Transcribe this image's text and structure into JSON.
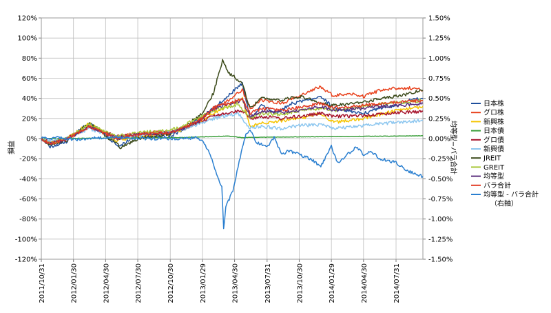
{
  "chart_data": {
    "type": "line",
    "ylabel_left": "損益",
    "ylabel_right": "均等型−バラ合計",
    "left_axis": {
      "min": -1.2,
      "max": 1.2,
      "step": 0.2,
      "format": "percent0",
      "ticks": [
        "120%",
        "100%",
        "80%",
        "60%",
        "40%",
        "20%",
        "0%",
        "-20%",
        "-40%",
        "-60%",
        "-80%",
        "-100%",
        "-120%"
      ]
    },
    "right_axis": {
      "min": -0.015,
      "max": 0.015,
      "step": 0.0025,
      "format": "percent2",
      "ticks": [
        "1.50%",
        "1.25%",
        "1.00%",
        "0.75%",
        "0.50%",
        "0.25%",
        "0.00%",
        "-0.25%",
        "-0.50%",
        "-0.75%",
        "-1.00%",
        "-1.25%",
        "-1.50%"
      ]
    },
    "x_range": [
      "2011-10-31",
      "2014-10-15"
    ],
    "x_ticks": [
      "2011/10/31",
      "2012/01/30",
      "2012/04/30",
      "2012/07/30",
      "2012/10/30",
      "2013/01/29",
      "2013/04/30",
      "2013/07/31",
      "2013/10/30",
      "2014/01/29",
      "2014/04/30",
      "2014/07/31"
    ],
    "series": [
      {
        "name": "日本株",
        "color": "#1f4f9c",
        "axis": "left",
        "width": 1.5,
        "points": [
          [
            "2011-10-31",
            0
          ],
          [
            "2011-11-25",
            -0.08
          ],
          [
            "2012-01-10",
            -0.03
          ],
          [
            "2012-02-20",
            0.1
          ],
          [
            "2012-03-15",
            0.15
          ],
          [
            "2012-04-20",
            0.07
          ],
          [
            "2012-06-05",
            -0.08
          ],
          [
            "2012-07-20",
            0.02
          ],
          [
            "2012-09-10",
            0.02
          ],
          [
            "2012-10-30",
            0.02
          ],
          [
            "2012-12-10",
            0.1
          ],
          [
            "2013-01-29",
            0.22
          ],
          [
            "2013-03-01",
            0.3
          ],
          [
            "2013-04-10",
            0.42
          ],
          [
            "2013-05-22",
            0.55
          ],
          [
            "2013-06-13",
            0.2
          ],
          [
            "2013-07-15",
            0.33
          ],
          [
            "2013-08-30",
            0.25
          ],
          [
            "2013-10-01",
            0.34
          ],
          [
            "2013-11-15",
            0.38
          ],
          [
            "2013-12-30",
            0.42
          ],
          [
            "2014-02-05",
            0.3
          ],
          [
            "2014-03-15",
            0.28
          ],
          [
            "2014-04-30",
            0.25
          ],
          [
            "2014-06-15",
            0.3
          ],
          [
            "2014-07-31",
            0.33
          ],
          [
            "2014-09-10",
            0.38
          ],
          [
            "2014-10-15",
            0.4
          ]
        ]
      },
      {
        "name": "グロ株",
        "color": "#e8401b",
        "axis": "left",
        "width": 1.5,
        "points": [
          [
            "2011-10-31",
            0
          ],
          [
            "2011-11-25",
            -0.05
          ],
          [
            "2012-01-10",
            0
          ],
          [
            "2012-03-15",
            0.12
          ],
          [
            "2012-05-30",
            0.02
          ],
          [
            "2012-07-30",
            0.05
          ],
          [
            "2012-09-20",
            0.07
          ],
          [
            "2012-10-30",
            0.06
          ],
          [
            "2012-12-10",
            0.1
          ],
          [
            "2013-01-29",
            0.2
          ],
          [
            "2013-03-01",
            0.28
          ],
          [
            "2013-04-10",
            0.38
          ],
          [
            "2013-05-22",
            0.48
          ],
          [
            "2013-06-13",
            0.3
          ],
          [
            "2013-07-15",
            0.38
          ],
          [
            "2013-09-10",
            0.35
          ],
          [
            "2013-10-30",
            0.42
          ],
          [
            "2013-12-30",
            0.52
          ],
          [
            "2014-02-05",
            0.42
          ],
          [
            "2014-03-15",
            0.45
          ],
          [
            "2014-04-30",
            0.42
          ],
          [
            "2014-06-15",
            0.48
          ],
          [
            "2014-07-31",
            0.5
          ],
          [
            "2014-09-10",
            0.5
          ],
          [
            "2014-10-15",
            0.48
          ]
        ]
      },
      {
        "name": "新興株",
        "color": "#f5c400",
        "axis": "left",
        "width": 1.5,
        "points": [
          [
            "2011-10-31",
            0
          ],
          [
            "2011-11-25",
            -0.04
          ],
          [
            "2012-01-10",
            0
          ],
          [
            "2012-03-15",
            0.15
          ],
          [
            "2012-05-30",
            -0.02
          ],
          [
            "2012-07-30",
            0.02
          ],
          [
            "2012-10-30",
            0.05
          ],
          [
            "2012-12-10",
            0.1
          ],
          [
            "2013-01-29",
            0.18
          ],
          [
            "2013-03-01",
            0.25
          ],
          [
            "2013-05-22",
            0.4
          ],
          [
            "2013-06-13",
            0.12
          ],
          [
            "2013-07-15",
            0.15
          ],
          [
            "2013-09-10",
            0.18
          ],
          [
            "2013-10-30",
            0.2
          ],
          [
            "2013-12-30",
            0.25
          ],
          [
            "2014-02-05",
            0.16
          ],
          [
            "2014-04-30",
            0.2
          ],
          [
            "2014-06-15",
            0.24
          ],
          [
            "2014-07-31",
            0.28
          ],
          [
            "2014-09-10",
            0.3
          ],
          [
            "2014-10-15",
            0.32
          ]
        ]
      },
      {
        "name": "日本債",
        "color": "#3a9e3a",
        "axis": "left",
        "width": 1.5,
        "points": [
          [
            "2011-10-31",
            0
          ],
          [
            "2012-06-01",
            0.005
          ],
          [
            "2012-12-01",
            0.01
          ],
          [
            "2013-04-10",
            0.025
          ],
          [
            "2013-05-22",
            0.01
          ],
          [
            "2013-09-01",
            0.015
          ],
          [
            "2014-01-29",
            0.02
          ],
          [
            "2014-07-31",
            0.025
          ],
          [
            "2014-10-15",
            0.028
          ]
        ]
      },
      {
        "name": "グロ債",
        "color": "#a6122a",
        "axis": "left",
        "width": 1.5,
        "points": [
          [
            "2011-10-31",
            0
          ],
          [
            "2011-11-25",
            -0.04
          ],
          [
            "2012-01-10",
            0
          ],
          [
            "2012-03-15",
            0.12
          ],
          [
            "2012-05-30",
            0.02
          ],
          [
            "2012-07-30",
            0.04
          ],
          [
            "2012-10-30",
            0.06
          ],
          [
            "2012-12-10",
            0.1
          ],
          [
            "2013-01-29",
            0.18
          ],
          [
            "2013-03-01",
            0.22
          ],
          [
            "2013-05-22",
            0.28
          ],
          [
            "2013-06-13",
            0.2
          ],
          [
            "2013-07-15",
            0.22
          ],
          [
            "2013-09-10",
            0.2
          ],
          [
            "2013-10-30",
            0.22
          ],
          [
            "2013-12-30",
            0.25
          ],
          [
            "2014-02-05",
            0.22
          ],
          [
            "2014-04-30",
            0.23
          ],
          [
            "2014-06-15",
            0.24
          ],
          [
            "2014-07-31",
            0.26
          ],
          [
            "2014-10-15",
            0.27
          ]
        ]
      },
      {
        "name": "新興債",
        "color": "#8cc6ef",
        "axis": "left",
        "width": 1.5,
        "points": [
          [
            "2011-10-31",
            0
          ],
          [
            "2011-11-25",
            -0.02
          ],
          [
            "2012-01-10",
            0
          ],
          [
            "2012-03-15",
            0.1
          ],
          [
            "2012-05-30",
            0
          ],
          [
            "2012-07-30",
            0.03
          ],
          [
            "2012-10-30",
            0.06
          ],
          [
            "2012-12-10",
            0.1
          ],
          [
            "2013-01-29",
            0.16
          ],
          [
            "2013-03-01",
            0.2
          ],
          [
            "2013-05-10",
            0.25
          ],
          [
            "2013-06-13",
            0.1
          ],
          [
            "2013-07-15",
            0.12
          ],
          [
            "2013-09-10",
            0.1
          ],
          [
            "2013-10-30",
            0.13
          ],
          [
            "2013-12-30",
            0.14
          ],
          [
            "2014-02-05",
            0.1
          ],
          [
            "2014-04-30",
            0.13
          ],
          [
            "2014-06-15",
            0.15
          ],
          [
            "2014-07-31",
            0.16
          ],
          [
            "2014-10-15",
            0.18
          ]
        ]
      },
      {
        "name": "JREIT",
        "color": "#3b4a1a",
        "axis": "left",
        "width": 1.5,
        "points": [
          [
            "2011-10-31",
            0
          ],
          [
            "2011-11-25",
            -0.06
          ],
          [
            "2012-01-10",
            -0.02
          ],
          [
            "2012-03-15",
            0.15
          ],
          [
            "2012-05-30",
            -0.05
          ],
          [
            "2012-06-10",
            -0.09
          ],
          [
            "2012-07-30",
            0
          ],
          [
            "2012-10-30",
            0.05
          ],
          [
            "2012-12-10",
            0.12
          ],
          [
            "2013-01-29",
            0.25
          ],
          [
            "2013-03-01",
            0.45
          ],
          [
            "2013-03-27",
            0.78
          ],
          [
            "2013-04-15",
            0.65
          ],
          [
            "2013-05-22",
            0.55
          ],
          [
            "2013-06-13",
            0.3
          ],
          [
            "2013-07-15",
            0.4
          ],
          [
            "2013-09-10",
            0.38
          ],
          [
            "2013-10-30",
            0.42
          ],
          [
            "2013-12-30",
            0.36
          ],
          [
            "2014-02-05",
            0.33
          ],
          [
            "2014-04-30",
            0.36
          ],
          [
            "2014-06-15",
            0.4
          ],
          [
            "2014-07-31",
            0.42
          ],
          [
            "2014-09-10",
            0.45
          ],
          [
            "2014-10-15",
            0.48
          ]
        ]
      },
      {
        "name": "GREIT",
        "color": "#a8c73a",
        "axis": "left",
        "width": 1.5,
        "points": [
          [
            "2011-10-31",
            0
          ],
          [
            "2011-11-25",
            -0.05
          ],
          [
            "2012-01-10",
            0
          ],
          [
            "2012-03-15",
            0.14
          ],
          [
            "2012-05-30",
            0.02
          ],
          [
            "2012-07-30",
            0.06
          ],
          [
            "2012-10-30",
            0.08
          ],
          [
            "2012-12-10",
            0.14
          ],
          [
            "2013-01-29",
            0.22
          ],
          [
            "2013-03-01",
            0.28
          ],
          [
            "2013-05-10",
            0.34
          ],
          [
            "2013-06-13",
            0.2
          ],
          [
            "2013-07-15",
            0.25
          ],
          [
            "2013-09-10",
            0.24
          ],
          [
            "2013-10-30",
            0.28
          ],
          [
            "2013-12-30",
            0.3
          ],
          [
            "2014-02-05",
            0.28
          ],
          [
            "2014-04-30",
            0.32
          ],
          [
            "2014-06-15",
            0.34
          ],
          [
            "2014-07-31",
            0.36
          ],
          [
            "2014-10-15",
            0.38
          ]
        ]
      },
      {
        "name": "均等型",
        "color": "#5a2d7d",
        "axis": "left",
        "width": 1.5,
        "points": [
          [
            "2011-10-31",
            0
          ],
          [
            "2011-11-25",
            -0.05
          ],
          [
            "2012-01-10",
            -0.01
          ],
          [
            "2012-03-15",
            0.12
          ],
          [
            "2012-05-30",
            0
          ],
          [
            "2012-07-30",
            0.04
          ],
          [
            "2012-10-30",
            0.06
          ],
          [
            "2012-12-10",
            0.11
          ],
          [
            "2013-01-29",
            0.2
          ],
          [
            "2013-03-01",
            0.3
          ],
          [
            "2013-05-22",
            0.38
          ],
          [
            "2013-06-13",
            0.22
          ],
          [
            "2013-07-15",
            0.27
          ],
          [
            "2013-09-10",
            0.26
          ],
          [
            "2013-10-30",
            0.28
          ],
          [
            "2013-12-30",
            0.32
          ],
          [
            "2014-02-05",
            0.28
          ],
          [
            "2014-04-30",
            0.3
          ],
          [
            "2014-06-15",
            0.32
          ],
          [
            "2014-07-31",
            0.33
          ],
          [
            "2014-10-15",
            0.35
          ]
        ]
      },
      {
        "name": "バラ合計",
        "color": "#e23a24",
        "axis": "left",
        "width": 1.5,
        "points": [
          [
            "2011-10-31",
            0
          ],
          [
            "2011-11-25",
            -0.05
          ],
          [
            "2012-01-10",
            -0.01
          ],
          [
            "2012-03-15",
            0.12
          ],
          [
            "2012-05-30",
            0
          ],
          [
            "2012-07-30",
            0.04
          ],
          [
            "2012-10-30",
            0.06
          ],
          [
            "2012-12-10",
            0.11
          ],
          [
            "2013-01-29",
            0.2
          ],
          [
            "2013-03-01",
            0.31
          ],
          [
            "2013-05-22",
            0.39
          ],
          [
            "2013-06-13",
            0.25
          ],
          [
            "2013-07-15",
            0.3
          ],
          [
            "2013-09-10",
            0.28
          ],
          [
            "2013-10-30",
            0.31
          ],
          [
            "2013-12-30",
            0.35
          ],
          [
            "2014-02-05",
            0.31
          ],
          [
            "2014-04-30",
            0.33
          ],
          [
            "2014-06-15",
            0.35
          ],
          [
            "2014-07-31",
            0.36
          ],
          [
            "2014-10-15",
            0.38
          ]
        ]
      },
      {
        "name": "均等型 - バラ合計\n（右軸）",
        "color": "#2a7fd0",
        "axis": "right",
        "width": 1.5,
        "points": [
          [
            "2011-10-31",
            0
          ],
          [
            "2011-12-15",
            0.0001
          ],
          [
            "2012-02-15",
            -0.0001
          ],
          [
            "2012-05-15",
            0.0002
          ],
          [
            "2012-08-15",
            0
          ],
          [
            "2012-11-15",
            0
          ],
          [
            "2013-01-15",
            0.0001
          ],
          [
            "2013-02-01",
            -0.0005
          ],
          [
            "2013-02-20",
            -0.002
          ],
          [
            "2013-03-10",
            -0.0045
          ],
          [
            "2013-03-25",
            -0.006
          ],
          [
            "2013-03-30",
            -0.0113
          ],
          [
            "2013-04-05",
            -0.0085
          ],
          [
            "2013-04-15",
            -0.0075
          ],
          [
            "2013-04-25",
            -0.0065
          ],
          [
            "2013-05-10",
            -0.0035
          ],
          [
            "2013-05-22",
            -0.001
          ],
          [
            "2013-06-01",
            0.0005
          ],
          [
            "2013-06-13",
            0.001
          ],
          [
            "2013-07-01",
            -0.0005
          ],
          [
            "2013-07-31",
            -0.001
          ],
          [
            "2013-08-20",
            0.0001
          ],
          [
            "2013-09-10",
            -0.002
          ],
          [
            "2013-10-01",
            -0.0015
          ],
          [
            "2013-10-30",
            -0.002
          ],
          [
            "2013-12-01",
            -0.0025
          ],
          [
            "2013-12-30",
            -0.0035
          ],
          [
            "2014-01-29",
            -0.001
          ],
          [
            "2014-02-15",
            -0.003
          ],
          [
            "2014-03-15",
            -0.002
          ],
          [
            "2014-04-10",
            -0.001
          ],
          [
            "2014-04-30",
            -0.002
          ],
          [
            "2014-05-20",
            -0.0015
          ],
          [
            "2014-06-15",
            -0.0025
          ],
          [
            "2014-07-31",
            -0.003
          ],
          [
            "2014-09-01",
            -0.004
          ],
          [
            "2014-09-30",
            -0.0045
          ],
          [
            "2014-10-15",
            -0.0047
          ]
        ]
      }
    ]
  }
}
